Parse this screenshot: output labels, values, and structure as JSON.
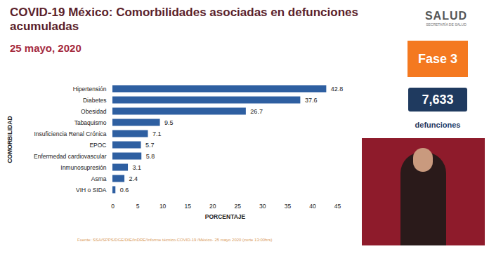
{
  "chart_data": {
    "type": "bar",
    "orientation": "horizontal",
    "title": "COVID-19 México: Comorbilidades asociadas en defunciones acumuladas",
    "subtitle": "25 mayo, 2020",
    "x_label": "PORCENTAJE",
    "y_label": "COMORBILIDAD",
    "categories": [
      "Hipertensión",
      "Diabetes",
      "Obesidad",
      "Tabaquismo",
      "Insuficiencia Renal Crónica",
      "EPOC",
      "Enfermedad cardiovascular",
      "Inmunosupresión",
      "Asma",
      "VIH o SIDA"
    ],
    "values": [
      42.8,
      37.6,
      26.7,
      9.5,
      7.1,
      5.7,
      5.8,
      3.1,
      2.4,
      0.6
    ],
    "color": "#2e5fa1",
    "xlim": [
      0,
      45
    ],
    "xticks": [
      0,
      5,
      10,
      15,
      20,
      25,
      30,
      35,
      40,
      45
    ],
    "grid": false,
    "data_labels": true,
    "source": "Fuente: SSA/SPPS/DGE/DIE/InDRE/Informe técnico.COVID-19 /México- 25 mayo 2020 (corte 13:00hrs)"
  },
  "panel": {
    "logo": "SALUD",
    "logo_subtitle": "SECRETARÍA DE SALUD",
    "phase": "Fase 3",
    "deaths": {
      "value": 7633,
      "label": "7,633"
    },
    "deaths_label": "defunciones"
  }
}
